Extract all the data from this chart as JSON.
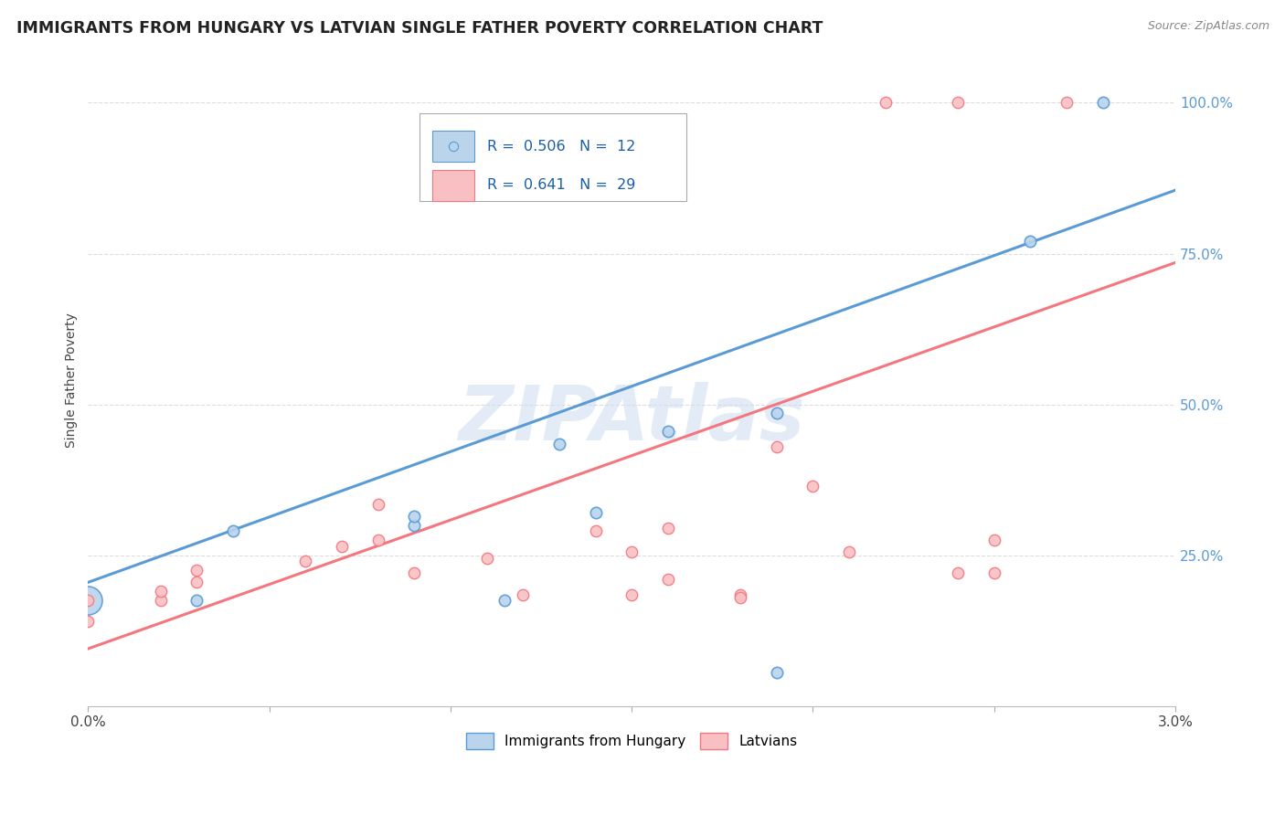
{
  "title": "IMMIGRANTS FROM HUNGARY VS LATVIAN SINGLE FATHER POVERTY CORRELATION CHART",
  "source": "Source: ZipAtlas.com",
  "ylabel": "Single Father Poverty",
  "legend_labels": [
    "Immigrants from Hungary",
    "Latvians"
  ],
  "blue_color": "#5b9bd5",
  "pink_color": "#f4777f",
  "blue_fill": "#bad4ec",
  "pink_fill": "#f9c0c4",
  "watermark": "ZIPAtlas",
  "blue_line": [
    0.0,
    0.205,
    0.03,
    0.855
  ],
  "pink_line": [
    0.0,
    0.095,
    0.03,
    0.735
  ],
  "hungary_points": [
    [
      0.0,
      0.175,
      500
    ],
    [
      0.003,
      0.175,
      80
    ],
    [
      0.004,
      0.29,
      80
    ],
    [
      0.009,
      0.3,
      80
    ],
    [
      0.009,
      0.315,
      80
    ],
    [
      0.013,
      0.435,
      80
    ],
    [
      0.014,
      0.32,
      80
    ],
    [
      0.0115,
      0.175,
      80
    ],
    [
      0.016,
      0.455,
      80
    ],
    [
      0.019,
      0.485,
      80
    ],
    [
      0.026,
      0.77,
      80
    ],
    [
      0.019,
      0.055,
      80
    ],
    [
      0.028,
      1.0,
      80
    ]
  ],
  "latvian_points": [
    [
      0.0,
      0.14,
      80
    ],
    [
      0.0,
      0.175,
      80
    ],
    [
      0.002,
      0.175,
      80
    ],
    [
      0.002,
      0.19,
      80
    ],
    [
      0.003,
      0.205,
      80
    ],
    [
      0.003,
      0.225,
      80
    ],
    [
      0.006,
      0.24,
      80
    ],
    [
      0.007,
      0.265,
      80
    ],
    [
      0.008,
      0.335,
      80
    ],
    [
      0.008,
      0.275,
      80
    ],
    [
      0.009,
      0.22,
      80
    ],
    [
      0.011,
      0.245,
      80
    ],
    [
      0.012,
      0.185,
      80
    ],
    [
      0.014,
      0.29,
      80
    ],
    [
      0.015,
      0.185,
      80
    ],
    [
      0.015,
      0.255,
      80
    ],
    [
      0.016,
      0.295,
      80
    ],
    [
      0.016,
      0.21,
      80
    ],
    [
      0.018,
      0.185,
      80
    ],
    [
      0.018,
      0.18,
      80
    ],
    [
      0.019,
      0.43,
      80
    ],
    [
      0.02,
      0.365,
      80
    ],
    [
      0.021,
      0.255,
      80
    ],
    [
      0.022,
      1.0,
      80
    ],
    [
      0.024,
      1.0,
      80
    ],
    [
      0.024,
      0.22,
      80
    ],
    [
      0.025,
      0.275,
      80
    ],
    [
      0.025,
      0.22,
      80
    ],
    [
      0.027,
      1.0,
      80
    ]
  ],
  "xlim": [
    0.0,
    0.03
  ],
  "ylim": [
    0.0,
    1.08
  ],
  "ytick_vals": [
    0.25,
    0.5,
    0.75,
    1.0
  ],
  "ytick_labels": [
    "25.0%",
    "50.0%",
    "75.0%",
    "100.0%"
  ],
  "xtick_vals": [
    0.0,
    0.005,
    0.01,
    0.015,
    0.02,
    0.025,
    0.03
  ],
  "legend_R_blue": "R =  0.506",
  "legend_N_blue": "N =  12",
  "legend_R_pink": "R =  0.641",
  "legend_N_pink": "N =  29"
}
